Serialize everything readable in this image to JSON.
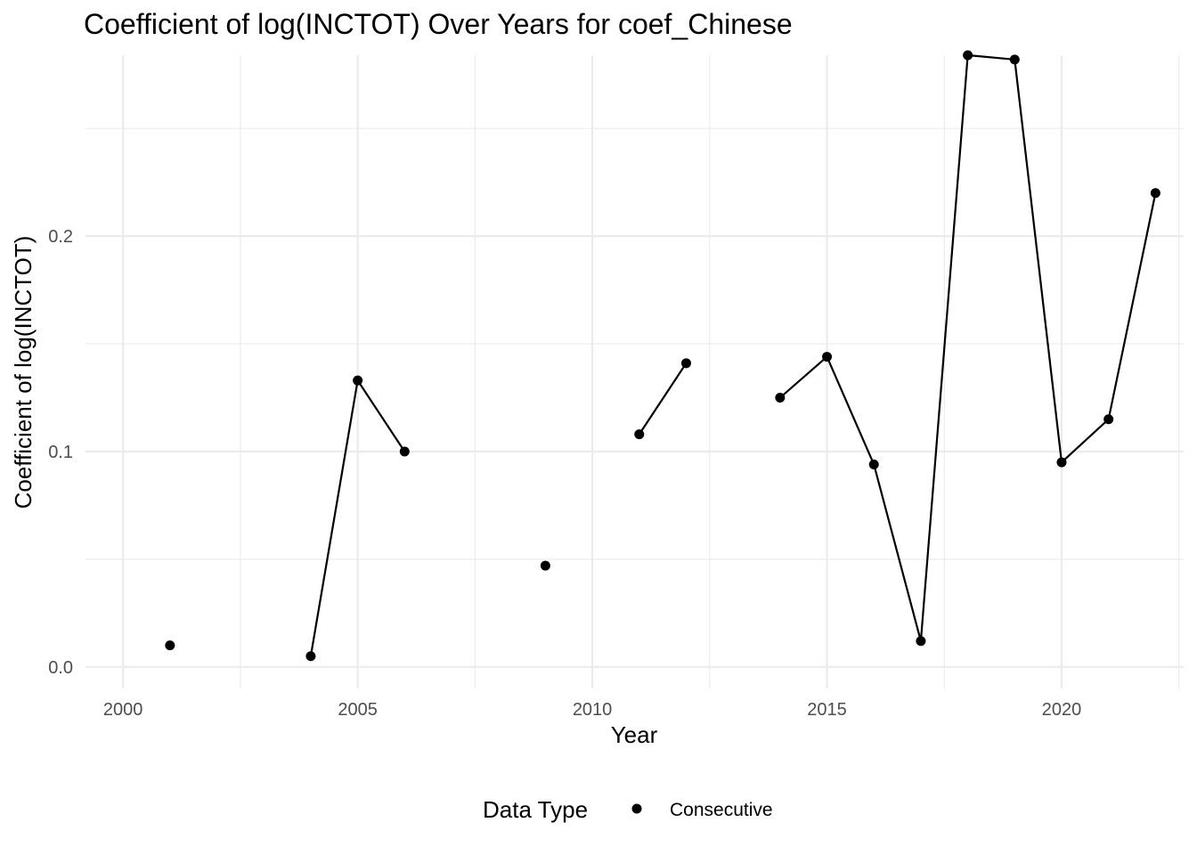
{
  "chart_data": {
    "type": "line",
    "title": "Coefficient of log(INCTOT) Over Years for coef_Chinese",
    "xlabel": "Year",
    "ylabel": "Coefficient of log(INCTOT)",
    "xlim": [
      1999.2,
      2022.6
    ],
    "ylim": [
      -0.01,
      0.284
    ],
    "x_ticks": [
      2000,
      2005,
      2010,
      2015,
      2020
    ],
    "x_tick_labels": [
      "2000",
      "2005",
      "2010",
      "2015",
      "2020"
    ],
    "y_ticks": [
      0.0,
      0.1,
      0.2
    ],
    "y_tick_labels": [
      "0.0",
      "0.1",
      "0.2"
    ],
    "grid": true,
    "legend": {
      "title": "Data Type",
      "position": "bottom",
      "entries": [
        "Consecutive"
      ]
    },
    "series": [
      {
        "name": "Consecutive",
        "color": "#000000",
        "segments": [
          [
            {
              "x": 2001,
              "y": 0.01
            }
          ],
          [
            {
              "x": 2004,
              "y": 0.005
            },
            {
              "x": 2005,
              "y": 0.133
            },
            {
              "x": 2006,
              "y": 0.1
            }
          ],
          [
            {
              "x": 2009,
              "y": 0.047
            }
          ],
          [
            {
              "x": 2011,
              "y": 0.108
            },
            {
              "x": 2012,
              "y": 0.141
            }
          ],
          [
            {
              "x": 2014,
              "y": 0.125
            },
            {
              "x": 2015,
              "y": 0.144
            },
            {
              "x": 2016,
              "y": 0.094
            },
            {
              "x": 2017,
              "y": 0.012
            },
            {
              "x": 2018,
              "y": 0.284
            },
            {
              "x": 2019,
              "y": 0.282
            },
            {
              "x": 2020,
              "y": 0.095
            },
            {
              "x": 2021,
              "y": 0.115
            },
            {
              "x": 2022,
              "y": 0.22
            }
          ]
        ]
      }
    ]
  }
}
